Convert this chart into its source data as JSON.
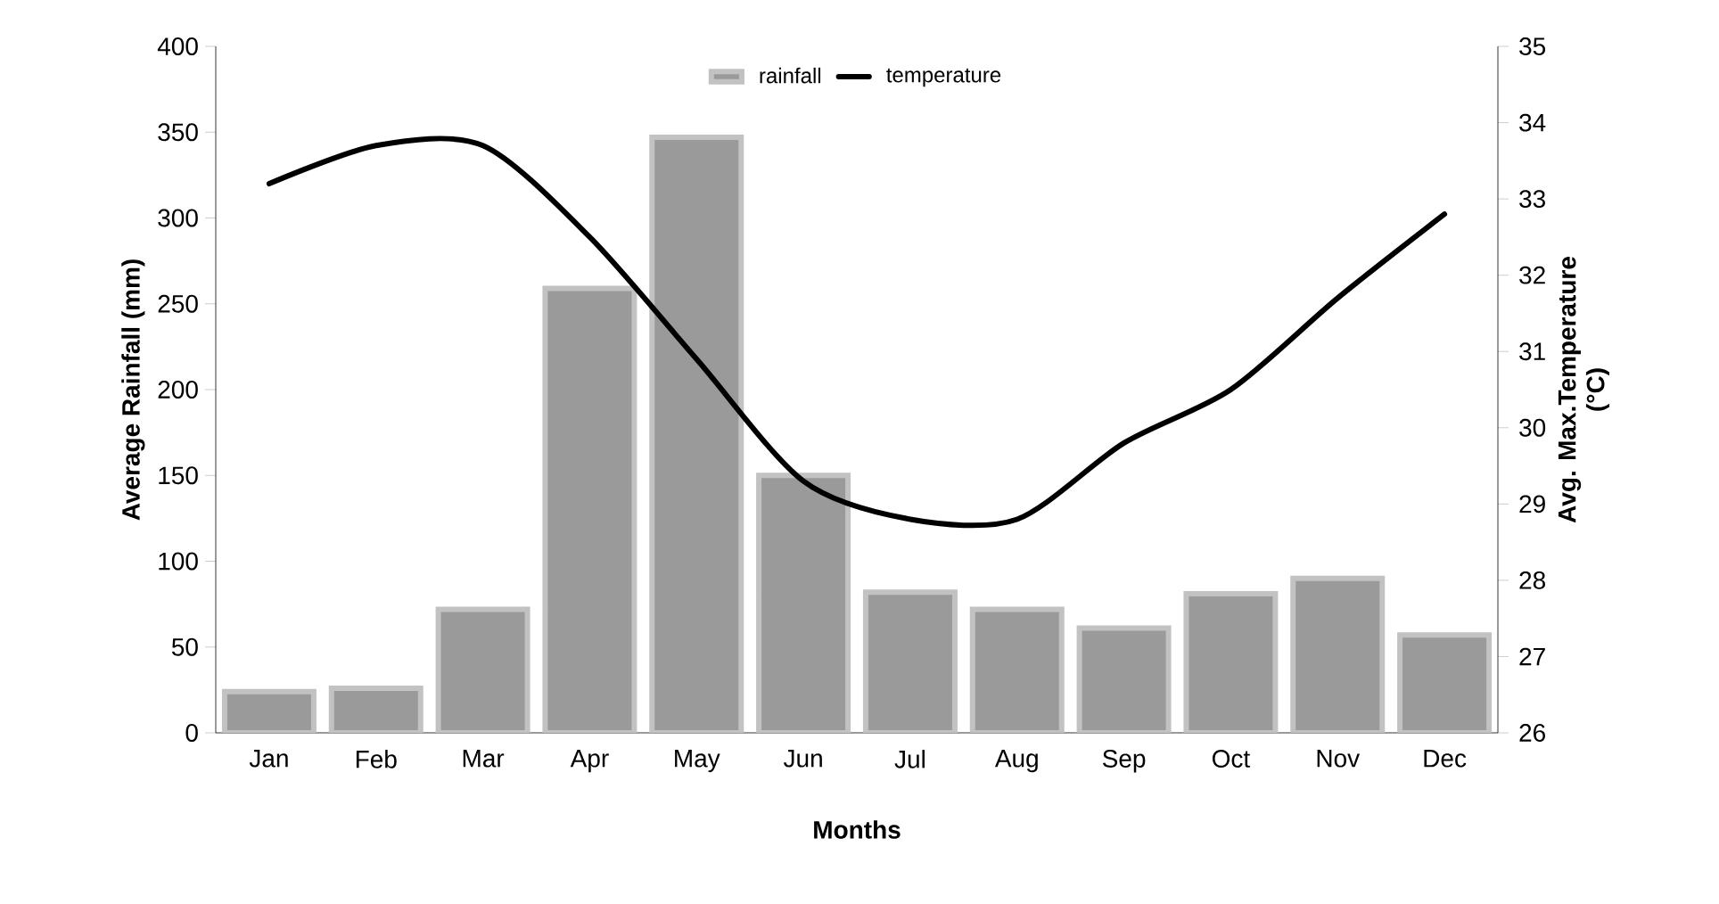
{
  "chart_data": {
    "type": "bar",
    "xlabel": "Months",
    "ylabel": "Average Rainfall (mm)",
    "y2label": "Avg. Max.Temperature (°C)",
    "categories": [
      "Jan",
      "Feb",
      "Mar",
      "Apr",
      "May",
      "Jun",
      "Jul",
      "Aug",
      "Sep",
      "Oct",
      "Nov",
      "Dec"
    ],
    "series": [
      {
        "name": "rainfall",
        "color": "#9a9a9a",
        "values": [
          24,
          26,
          72,
          259,
          347,
          150,
          82,
          72,
          61,
          81,
          90,
          57
        ]
      },
      {
        "name": "temperature",
        "type": "line",
        "axis": "y2",
        "color": "#000000",
        "values": [
          33.2,
          33.7,
          33.7,
          32.5,
          30.9,
          29.3,
          28.8,
          28.8,
          29.8,
          30.5,
          31.7,
          32.8
        ]
      }
    ],
    "ylim": [
      0,
      400
    ],
    "yticks": [
      0,
      50,
      100,
      150,
      200,
      250,
      300,
      350,
      400
    ],
    "y2lim": [
      26,
      35
    ],
    "y2ticks": [
      26,
      27,
      28,
      29,
      30,
      31,
      32,
      33,
      34,
      35
    ],
    "legend": "top",
    "grid": false
  }
}
